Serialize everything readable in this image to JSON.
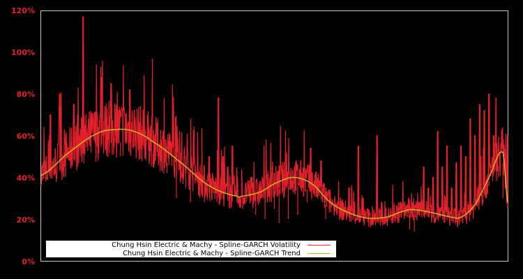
{
  "chart_data": {
    "type": "line",
    "title": "",
    "xlabel": "",
    "ylabel": "",
    "ylim": [
      0,
      120
    ],
    "y_ticks": [
      "0%",
      "20%",
      "40%",
      "60%",
      "80%",
      "100%",
      "120%"
    ],
    "grid": false,
    "legend_position": "bottom-left inside",
    "background": "#000000",
    "frame_color": "#c8c8c8",
    "series": [
      {
        "name": "Chung Hsin Electric & Machy - Spline-GARCH Volatility",
        "color": "#e0202a",
        "note": "noisy daily volatility; approximate envelope points (x fraction 0-1, value %)",
        "values": [
          [
            0.0,
            36
          ],
          [
            0.01,
            47
          ],
          [
            0.02,
            70
          ],
          [
            0.03,
            44
          ],
          [
            0.04,
            80
          ],
          [
            0.05,
            52
          ],
          [
            0.07,
            58
          ],
          [
            0.07,
            75
          ],
          [
            0.09,
            55
          ],
          [
            0.09,
            117
          ],
          [
            0.1,
            62
          ],
          [
            0.12,
            70
          ],
          [
            0.13,
            56
          ],
          [
            0.13,
            88
          ],
          [
            0.15,
            85
          ],
          [
            0.16,
            60
          ],
          [
            0.17,
            50
          ],
          [
            0.18,
            70
          ],
          [
            0.19,
            82
          ],
          [
            0.2,
            55
          ],
          [
            0.22,
            57
          ],
          [
            0.23,
            64
          ],
          [
            0.24,
            45
          ],
          [
            0.25,
            58
          ],
          [
            0.27,
            42
          ],
          [
            0.28,
            50
          ],
          [
            0.29,
            30
          ],
          [
            0.3,
            40
          ],
          [
            0.31,
            35
          ],
          [
            0.32,
            28
          ],
          [
            0.33,
            45
          ],
          [
            0.34,
            30
          ],
          [
            0.35,
            28
          ],
          [
            0.36,
            50
          ],
          [
            0.38,
            78
          ],
          [
            0.39,
            50
          ],
          [
            0.4,
            45
          ],
          [
            0.41,
            55
          ],
          [
            0.42,
            40
          ],
          [
            0.44,
            30
          ],
          [
            0.45,
            40
          ],
          [
            0.46,
            22
          ],
          [
            0.47,
            35
          ],
          [
            0.48,
            20
          ],
          [
            0.5,
            25
          ],
          [
            0.51,
            18
          ],
          [
            0.52,
            30
          ],
          [
            0.53,
            20
          ],
          [
            0.55,
            22
          ],
          [
            0.56,
            35
          ],
          [
            0.57,
            28
          ],
          [
            0.6,
            48
          ],
          [
            0.61,
            20
          ],
          [
            0.63,
            28
          ],
          [
            0.65,
            25
          ],
          [
            0.66,
            35
          ],
          [
            0.68,
            55
          ],
          [
            0.69,
            30
          ],
          [
            0.7,
            25
          ],
          [
            0.72,
            60
          ],
          [
            0.73,
            28
          ],
          [
            0.75,
            20
          ],
          [
            0.77,
            28
          ],
          [
            0.79,
            15
          ],
          [
            0.8,
            14
          ],
          [
            0.8,
            14
          ],
          [
            0.81,
            28
          ],
          [
            0.82,
            45
          ],
          [
            0.83,
            35
          ],
          [
            0.84,
            40
          ],
          [
            0.85,
            62
          ],
          [
            0.86,
            45
          ],
          [
            0.87,
            55
          ],
          [
            0.88,
            35
          ],
          [
            0.89,
            47
          ],
          [
            0.9,
            55
          ],
          [
            0.91,
            50
          ],
          [
            0.92,
            68
          ],
          [
            0.93,
            60
          ],
          [
            0.94,
            75
          ],
          [
            0.95,
            72
          ],
          [
            0.96,
            80
          ],
          [
            0.97,
            60
          ],
          [
            0.975,
            78
          ],
          [
            0.98,
            40
          ],
          [
            0.99,
            30
          ],
          [
            1.0,
            60
          ]
        ]
      },
      {
        "name": "Chung Hsin Electric & Machy - Spline-GARCH Trend",
        "color": "#d4b02a",
        "values": [
          [
            0.0,
            41
          ],
          [
            0.06,
            52
          ],
          [
            0.12,
            61
          ],
          [
            0.165,
            63
          ],
          [
            0.2,
            62
          ],
          [
            0.24,
            57
          ],
          [
            0.3,
            47
          ],
          [
            0.36,
            36
          ],
          [
            0.42,
            31
          ],
          [
            0.47,
            33
          ],
          [
            0.43,
            31
          ],
          [
            0.5,
            37
          ],
          [
            0.43,
            31
          ],
          [
            0.54,
            40
          ],
          [
            0.58,
            37
          ],
          [
            0.62,
            28
          ],
          [
            0.66,
            23
          ],
          [
            0.7,
            20.5
          ],
          [
            0.74,
            21
          ],
          [
            0.78,
            24
          ],
          [
            0.8,
            24.5
          ],
          [
            0.84,
            23
          ],
          [
            0.88,
            21
          ],
          [
            0.9,
            21
          ],
          [
            0.93,
            27
          ],
          [
            0.96,
            40
          ],
          [
            0.99,
            52
          ],
          [
            1.0,
            28
          ]
        ]
      }
    ]
  },
  "legend": {
    "items": [
      {
        "label": "Chung Hsin Electric & Machy - Spline-GARCH Volatility",
        "color": "#e0202a"
      },
      {
        "label": "Chung Hsin Electric & Machy - Spline-GARCH Trend",
        "color": "#d4b02a"
      }
    ]
  },
  "axis": {
    "y_ticks": [
      "0%",
      "20%",
      "40%",
      "60%",
      "80%",
      "100%",
      "120%"
    ]
  }
}
